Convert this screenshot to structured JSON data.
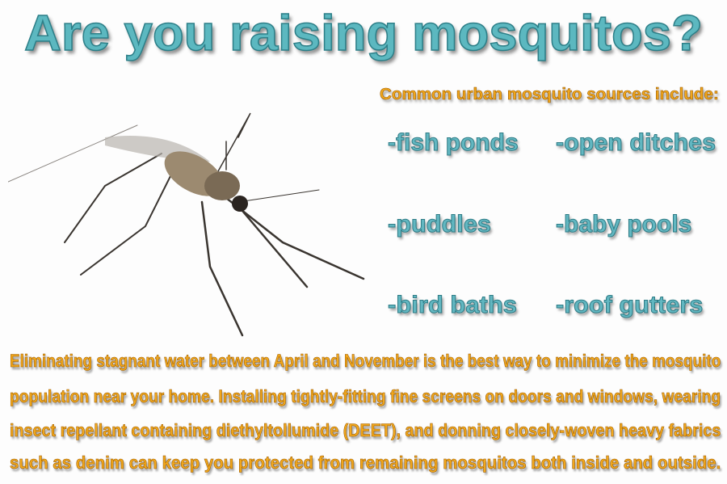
{
  "title": "Are you raising mosquitos?",
  "subtitle": "Common urban mosquito sources include:",
  "sources": [
    "-fish ponds",
    "-open ditches",
    "-puddles",
    "-baby pools",
    "-bird baths",
    "-roof gutters"
  ],
  "body_lines": [
    "Eliminating stagnant water between April and November is the best way to minimize the mosquito",
    "population near your home. Installing tightly-fitting fine screens  on doors and windows, wearing",
    "insect repellant containing diethyltollumide (DEET), and donning closely-woven heavy fabrics",
    "such as denim can keep you protected from remaining mosquitos both inside and outside."
  ],
  "colors": {
    "title_teal": "#5cb8c0",
    "text_orange": "#f2a81c"
  }
}
